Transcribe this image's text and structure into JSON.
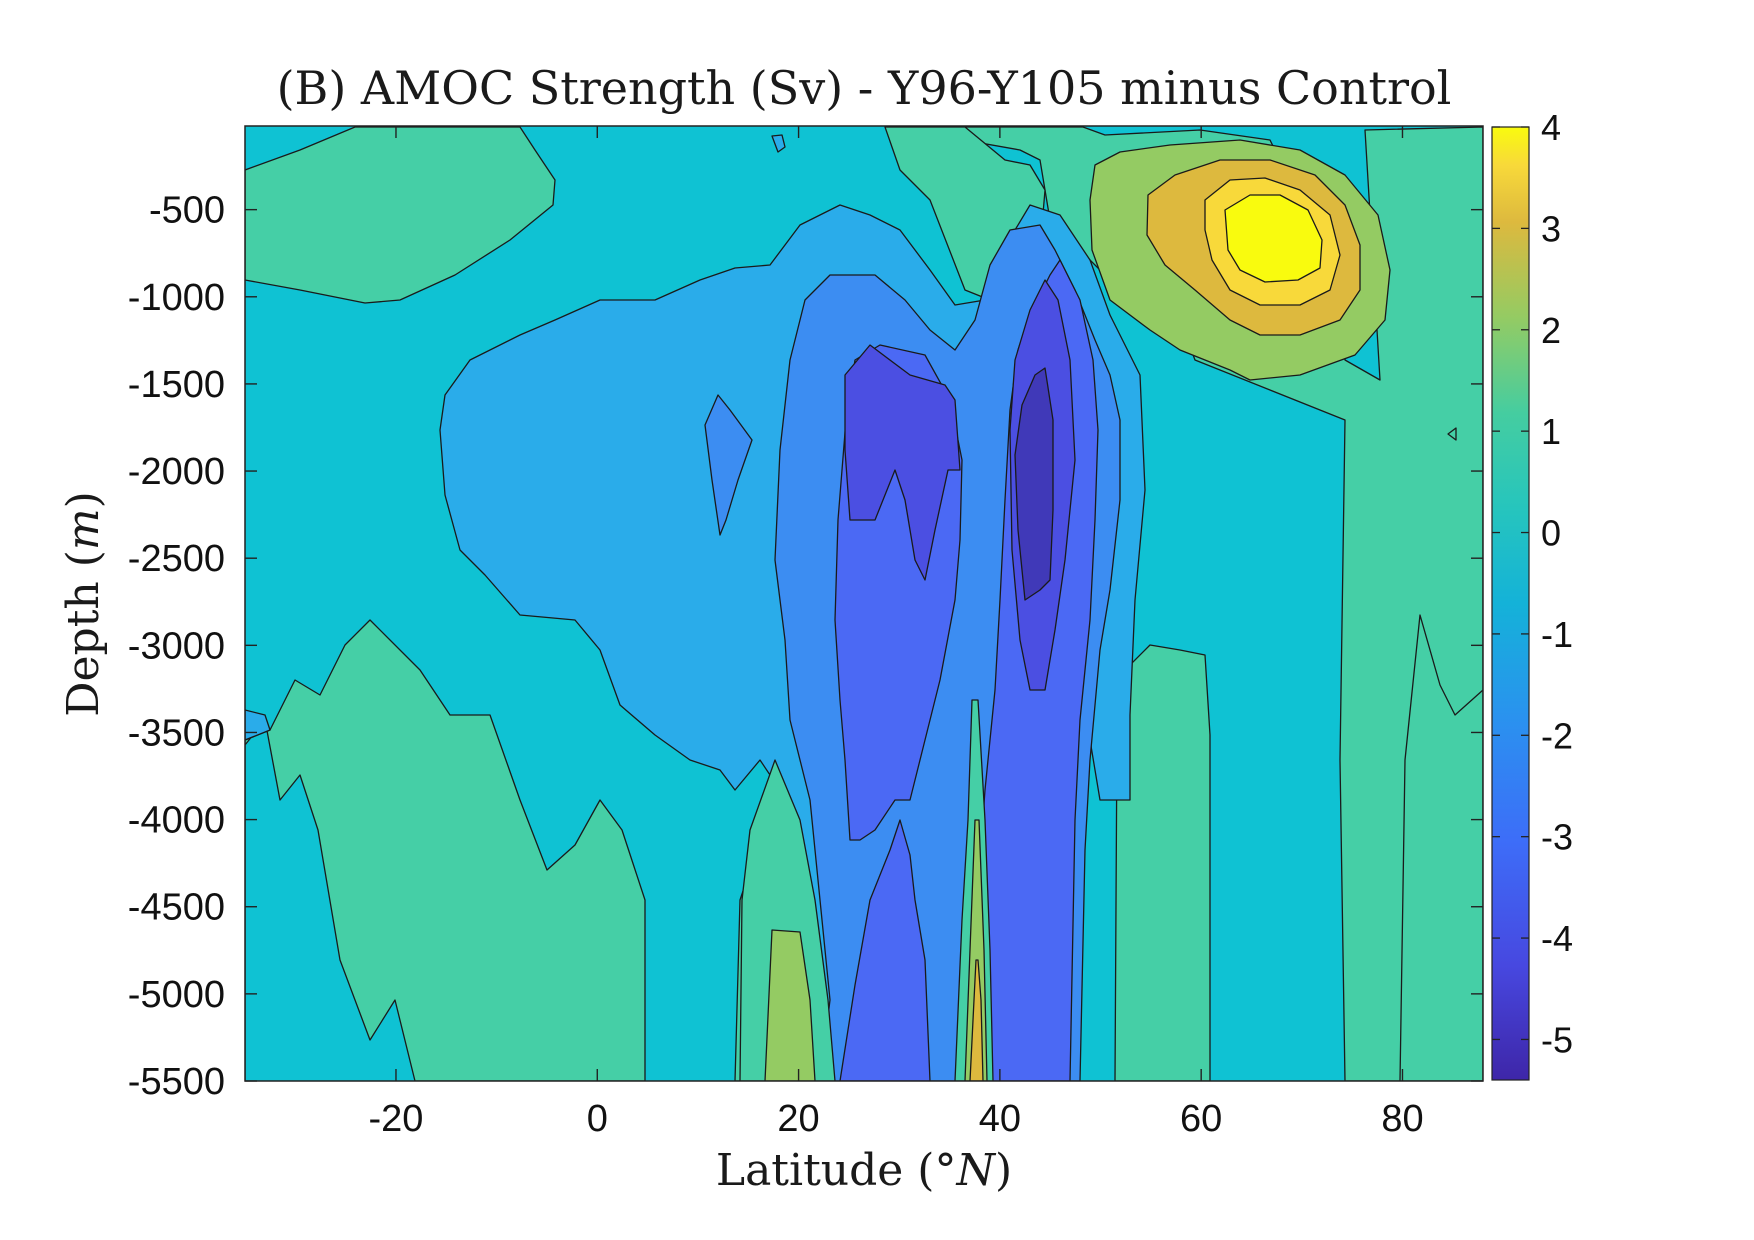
{
  "chart_data": {
    "type": "contourf",
    "title": "(B) AMOC Strength (Sv) - Y96-Y105 minus Control",
    "xlabel_text": "Latitude (",
    "xlabel_unit": "°N",
    "xlabel_close": ")",
    "ylabel_text": "Depth (",
    "ylabel_unit": "m",
    "ylabel_close": ")",
    "xlim": [
      -35,
      88
    ],
    "ylim": [
      -5500,
      -20
    ],
    "xticks": [
      -20,
      0,
      20,
      40,
      60,
      80
    ],
    "xtick_labels": [
      "-20",
      "0",
      "20",
      "40",
      "60",
      "80"
    ],
    "yticks": [
      -500,
      -1000,
      -1500,
      -2000,
      -2500,
      -3000,
      -3500,
      -4000,
      -4500,
      -5000,
      -5500
    ],
    "ytick_labels": [
      "-500",
      "-1000",
      "-1500",
      "-2000",
      "-2500",
      "-3000",
      "-3500",
      "-4000",
      "-4500",
      "-5000",
      "-5500"
    ],
    "colorbar": {
      "range": [
        -5.4,
        4.0
      ],
      "ticks": [
        4,
        3,
        2,
        1,
        0,
        -1,
        -2,
        -3,
        -4,
        -5
      ],
      "tick_labels": [
        "4",
        "3",
        "2",
        "1",
        "0",
        "-1",
        "-2",
        "-3",
        "-4",
        "-5"
      ]
    },
    "contour_levels_sv": [
      -5,
      -4.5,
      -4,
      -3.5,
      -3,
      -2.5,
      -2,
      -1.5,
      -0.5,
      0,
      0.5,
      1,
      1.5,
      2,
      2.5,
      3,
      3.5
    ],
    "colormap": "parula",
    "features": [
      {
        "name": "NH subpolar positive anomaly",
        "center_lat": 66,
        "center_depth": -650,
        "peak": 3.8
      },
      {
        "name": "mid-latitude negative core",
        "center_lat": 44,
        "center_depth": -1800,
        "peak": -5.3
      },
      {
        "name": "subtropical negative lobe",
        "center_lat": 30,
        "center_depth": -1700,
        "peak": -4.2
      },
      {
        "name": "deep positive column",
        "center_lat": 38,
        "center_depth": -5200,
        "peak": 2.2
      }
    ]
  }
}
